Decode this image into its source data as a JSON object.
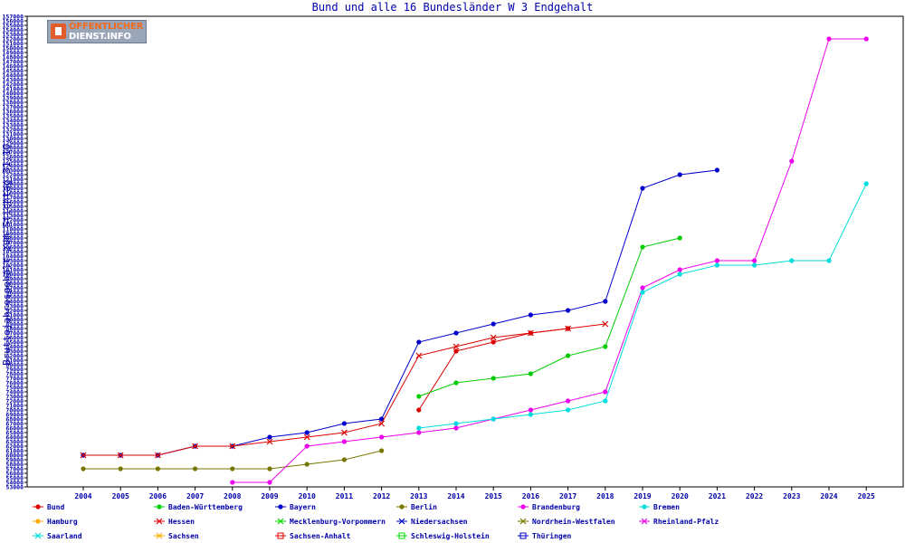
{
  "chart_data": {
    "type": "line",
    "title": "Bund und alle 16 Bundesländer W 3 Endgehalt",
    "ylabel": "Bruttojahresgehalt zum Stichtag 31.10.",
    "xlabel": "",
    "ylim": [
      53000,
      157000
    ],
    "ytick_step": 1000,
    "grid": false,
    "legend_position": "bottom",
    "x": [
      2004,
      2005,
      2006,
      2007,
      2008,
      2009,
      2010,
      2011,
      2012,
      2013,
      2014,
      2015,
      2016,
      2017,
      2018,
      2019,
      2020,
      2021,
      2022,
      2023,
      2024,
      2025
    ],
    "series": [
      {
        "name": "Bund",
        "color": "#dd0000",
        "marker": "dot",
        "values": [
          null,
          null,
          null,
          null,
          null,
          null,
          null,
          null,
          null,
          70000,
          83000,
          85000,
          87000,
          88000,
          null,
          null,
          null,
          null,
          null,
          null,
          null,
          null
        ]
      },
      {
        "name": "Baden-Württemberg",
        "color": "#00cc00",
        "marker": "dot",
        "values": [
          null,
          null,
          null,
          null,
          null,
          null,
          null,
          null,
          null,
          73000,
          76000,
          77000,
          78000,
          82000,
          84000,
          106000,
          108000,
          null,
          null,
          null,
          null,
          null
        ]
      },
      {
        "name": "Bayern",
        "color": "#0000cc",
        "marker": "dot",
        "values": [
          60000,
          60000,
          60000,
          62000,
          62000,
          64000,
          65000,
          67000,
          68000,
          85000,
          87000,
          89000,
          91000,
          92000,
          94000,
          119000,
          122000,
          123000,
          null,
          null,
          null,
          null
        ]
      },
      {
        "name": "Berlin",
        "color": "#777700",
        "marker": "dot",
        "values": [
          57000,
          57000,
          57000,
          57000,
          57000,
          57000,
          58000,
          59000,
          61000,
          null,
          null,
          null,
          null,
          null,
          null,
          null,
          null,
          null,
          null,
          null,
          null,
          null
        ]
      },
      {
        "name": "Brandenburg",
        "color": "#ee00ee",
        "marker": "dot",
        "values": [
          null,
          null,
          null,
          null,
          null,
          null,
          null,
          null,
          null,
          null,
          null,
          null,
          null,
          null,
          null,
          null,
          null,
          null,
          null,
          null,
          null,
          null
        ]
      },
      {
        "name": "Bremen",
        "color": "#00dddd",
        "marker": "dot",
        "values": [
          null,
          null,
          null,
          null,
          null,
          null,
          null,
          null,
          null,
          null,
          null,
          null,
          null,
          null,
          null,
          null,
          null,
          null,
          null,
          null,
          null,
          null
        ]
      },
      {
        "name": "Hamburg",
        "color": "#ffaa00",
        "marker": "dot",
        "values": [
          null,
          null,
          null,
          null,
          null,
          null,
          null,
          null,
          null,
          null,
          null,
          null,
          null,
          null,
          null,
          null,
          null,
          null,
          null,
          null,
          null,
          null
        ]
      },
      {
        "name": "Hessen",
        "color": "#dd0000",
        "marker": "x",
        "values": [
          null,
          null,
          null,
          null,
          null,
          null,
          null,
          null,
          null,
          null,
          null,
          null,
          null,
          null,
          null,
          null,
          null,
          null,
          null,
          null,
          null,
          null
        ]
      },
      {
        "name": "Mecklenburg-Vorpommern",
        "color": "#00dd00",
        "marker": "x",
        "values": [
          null,
          null,
          null,
          null,
          null,
          null,
          null,
          null,
          null,
          null,
          null,
          null,
          null,
          null,
          null,
          null,
          null,
          null,
          null,
          null,
          null,
          null
        ]
      },
      {
        "name": "Niedersachsen",
        "color": "#0000cc",
        "marker": "x",
        "values": [
          null,
          null,
          null,
          null,
          null,
          null,
          null,
          null,
          null,
          null,
          null,
          null,
          null,
          null,
          null,
          null,
          null,
          null,
          null,
          null,
          null,
          null
        ]
      },
      {
        "name": "Nordrhein-Westfalen",
        "color": "#777700",
        "marker": "x",
        "values": [
          null,
          null,
          null,
          null,
          null,
          null,
          null,
          null,
          null,
          null,
          null,
          null,
          null,
          null,
          null,
          null,
          null,
          null,
          null,
          null,
          null,
          null
        ]
      },
      {
        "name": "Rheinland-Pfalz",
        "color": "#ee00ee",
        "marker": "x",
        "values": [
          null,
          null,
          null,
          null,
          null,
          null,
          null,
          null,
          null,
          null,
          null,
          null,
          null,
          null,
          null,
          null,
          null,
          null,
          null,
          null,
          null,
          null
        ]
      },
      {
        "name": "Saarland",
        "color": "#00dddd",
        "marker": "x",
        "values": [
          null,
          null,
          null,
          null,
          null,
          null,
          null,
          null,
          null,
          null,
          null,
          null,
          null,
          null,
          null,
          null,
          null,
          null,
          null,
          null,
          null,
          null
        ]
      },
      {
        "name": "Sachsen",
        "color": "#ffaa00",
        "marker": "x",
        "values": [
          null,
          null,
          null,
          null,
          null,
          null,
          null,
          null,
          null,
          null,
          null,
          null,
          null,
          null,
          null,
          null,
          null,
          null,
          null,
          null,
          null,
          null
        ]
      },
      {
        "name": "Sachsen-Anhalt",
        "color": "#dd0000",
        "marker": "square",
        "values": [
          null,
          null,
          null,
          null,
          null,
          null,
          null,
          null,
          null,
          null,
          null,
          null,
          null,
          null,
          null,
          null,
          null,
          null,
          null,
          null,
          null,
          null
        ]
      },
      {
        "name": "Schleswig-Holstein",
        "color": "#00dd00",
        "marker": "square",
        "values": [
          null,
          null,
          null,
          null,
          null,
          null,
          null,
          null,
          null,
          null,
          null,
          null,
          null,
          null,
          null,
          null,
          null,
          null,
          null,
          null,
          null,
          null
        ]
      },
      {
        "name": "Thüringen",
        "color": "#0000cc",
        "marker": "square",
        "values": [
          null,
          null,
          null,
          null,
          null,
          null,
          null,
          null,
          null,
          null,
          null,
          null,
          null,
          null,
          null,
          null,
          null,
          null,
          null,
          null,
          null,
          null
        ]
      }
    ]
  },
  "logo": {
    "line1": "ÖFFENTLICHER",
    "line2": "DIENST.INFO"
  }
}
